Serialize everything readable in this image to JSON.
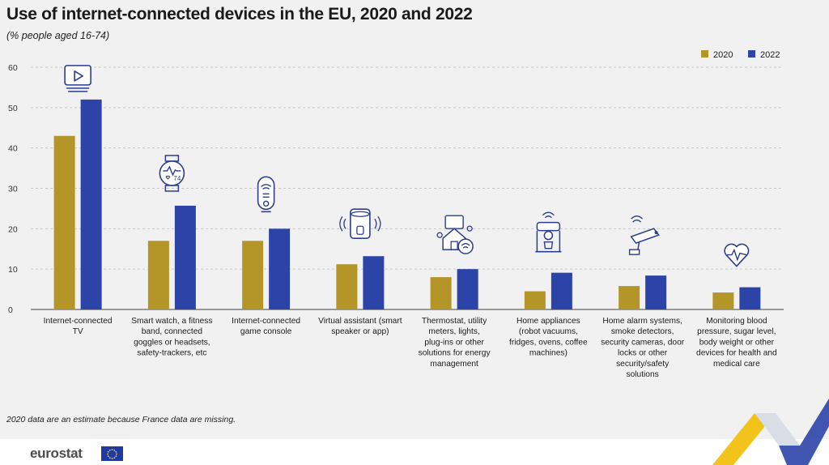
{
  "header": {
    "title": "Use of internet-connected devices in the EU, 2020 and 2022",
    "subtitle": "(% people aged 16-74)"
  },
  "footnote": "2020 data are an estimate because France data are missing.",
  "brand": {
    "logo_text": "eurostat"
  },
  "colors": {
    "series_2020": "#b49528",
    "series_2022": "#2c44a8",
    "gridline": "#c8c8c8",
    "icon_stroke": "#2c3e8c"
  },
  "chart_data": {
    "type": "bar",
    "title": "Use of internet-connected devices in the EU, 2020 and 2022",
    "subtitle": "(% people aged 16-74)",
    "ylim": [
      0,
      60
    ],
    "yticks": [
      0,
      10,
      20,
      30,
      40,
      50,
      60
    ],
    "grid": true,
    "legend_position": "top-right",
    "categories": [
      [
        "Internet-connected",
        "TV"
      ],
      [
        "Smart watch, a fitness",
        "band, connected",
        "goggles or headsets,",
        "safety-trackers, etc"
      ],
      [
        "Internet-connected",
        "game console"
      ],
      [
        "Virtual assistant (smart",
        "speaker or app)"
      ],
      [
        "Thermostat, utility",
        "meters, lights,",
        "plug-ins or other",
        "solutions for energy",
        "management"
      ],
      [
        "Home appliances",
        "(robot vacuums,",
        "fridges, ovens, coffee",
        "machines)"
      ],
      [
        "Home alarm systems,",
        "smoke detectors,",
        "security cameras, door",
        "locks or other",
        "security/safety",
        "solutions"
      ],
      [
        "Monitoring blood",
        "pressure, sugar level,",
        "body weight or other",
        "devices for health and",
        "medical care"
      ]
    ],
    "icons": [
      "tv-play-icon",
      "smartwatch-icon",
      "game-console-icon",
      "smart-speaker-icon",
      "smart-home-icon",
      "coffee-machine-icon",
      "security-camera-icon",
      "heart-pulse-icon"
    ],
    "series": [
      {
        "name": "2020",
        "values": [
          43.0,
          17.0,
          17.0,
          11.2,
          8.0,
          4.5,
          5.8,
          4.2
        ]
      },
      {
        "name": "2022",
        "values": [
          52.0,
          25.7,
          20.0,
          13.2,
          10.0,
          9.1,
          8.4,
          5.5
        ]
      }
    ]
  }
}
